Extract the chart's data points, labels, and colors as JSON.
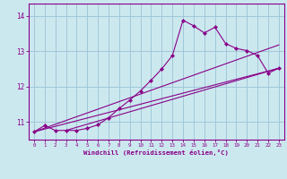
{
  "xlabel": "Windchill (Refroidissement éolien,°C)",
  "bg_color": "#cce8ef",
  "grid_color": "#a0c8d8",
  "line_color": "#880088",
  "spine_color": "#880088",
  "xlim": [
    -0.5,
    23.5
  ],
  "ylim": [
    10.5,
    14.35
  ],
  "yticks": [
    11,
    12,
    13,
    14
  ],
  "xticks": [
    0,
    1,
    2,
    3,
    4,
    5,
    6,
    7,
    8,
    9,
    10,
    11,
    12,
    13,
    14,
    15,
    16,
    17,
    18,
    19,
    20,
    21,
    22,
    23
  ],
  "curve_x": [
    0,
    1,
    2,
    3,
    4,
    5,
    6,
    7,
    8,
    9,
    10,
    11,
    12,
    13,
    14,
    15,
    16,
    17,
    18,
    19,
    20,
    21,
    22,
    23
  ],
  "curve_y": [
    10.72,
    10.9,
    10.76,
    10.76,
    10.76,
    10.82,
    10.92,
    11.12,
    11.38,
    11.62,
    11.88,
    12.18,
    12.5,
    12.88,
    13.88,
    13.72,
    13.52,
    13.68,
    13.22,
    13.08,
    13.02,
    12.88,
    12.38,
    12.52
  ],
  "line1_x": [
    0,
    23
  ],
  "line1_y": [
    10.72,
    13.18
  ],
  "line2_x": [
    0,
    23
  ],
  "line2_y": [
    10.72,
    12.52
  ],
  "line3_x": [
    3,
    23
  ],
  "line3_y": [
    10.76,
    12.52
  ]
}
